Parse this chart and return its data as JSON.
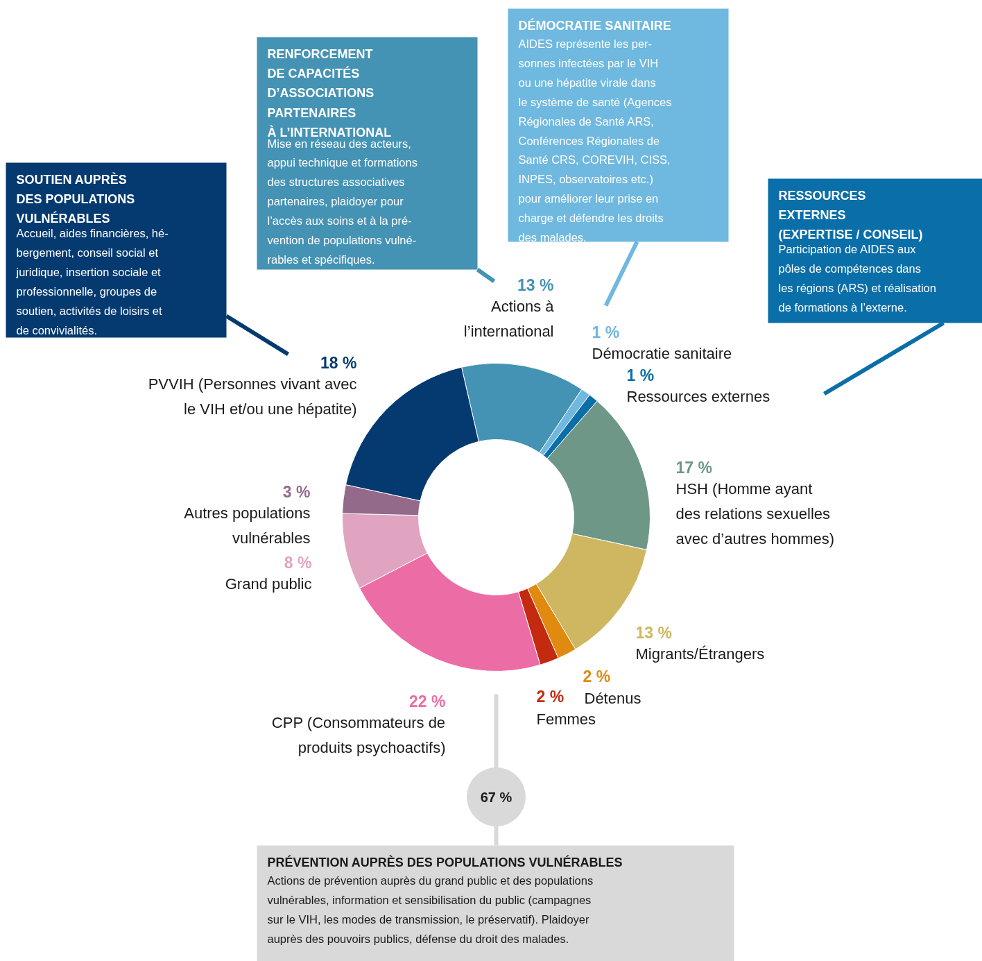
{
  "chart_data": {
    "type": "donut",
    "categories": [
      "Actions à\nl’international",
      "Démocratie sanitaire",
      "Ressources externes",
      "HSH (Homme ayant\ndes relations sexuelles\navec d’autres hommes)",
      "Migrants/Étrangers",
      "Détenus",
      "Femmes",
      "CPP (Consommateurs de\nproduits psychoactifs)",
      "Grand public",
      "Autres populations\nvulnérables",
      "PVVIH (Personnes vivant avec\nle VIH et/ou une hépatite)"
    ],
    "values": [
      13,
      1,
      1,
      17,
      13,
      2,
      2,
      22,
      8,
      3,
      18
    ],
    "value_labels": [
      "13 %",
      "1 %",
      "1 %",
      "17 %",
      "13 %",
      "2 %",
      "2 %",
      "22 %",
      "8 %",
      "3 %",
      "18 %"
    ],
    "colors": [
      "#4492b4",
      "#6fb8df",
      "#0a6ea8",
      "#6e9788",
      "#cfb660",
      "#e08a10",
      "#c42a10",
      "#ec6ca6",
      "#e0a4c0",
      "#946a8a",
      "#043a70"
    ],
    "annotations": [
      "SOUTIEN AUPRÈS\nDES POPULATIONS\nVULNÉRABLES",
      "Accueil, aides financières, hé-\nbergement, conseil social et\njuridique, insertion sociale et\nprofessionnelle, groupes de\nsoutien, activités de loisirs et\nde convivialités.",
      "RENFORCEMENT\nDE CAPACITÉS\nD’ASSOCIATIONS\nPARTENAIRES\nÀ L’INTERNATIONAL",
      "Mise en réseau des acteurs,\nappui technique et formations\ndes structures associatives\npartenaires, plaidoyer pour\nl’accès aux soins et à la pré-\nvention de populations vulné-\nrables et spécifiques.",
      "DÉMOCRATIE SANITAIRE",
      "AIDES représente les per-\nsonnes infectées par le VIH\nou une hépatite virale dans\nle système de santé (Agences\nRégionales de Santé ARS,\nConférences Régionales de\nSanté CRS, COREVIH, CISS,\nINPES, observatoires etc.)\npour améliorer leur prise en\ncharge et défendre les droits\ndes malades.",
      "RESSOURCES\nEXTERNES\n(EXPERTISE / CONSEIL)",
      "Participation de AIDES aux\npôles de compétences dans\nles régions (ARS) et réalisation\nde formations à l’externe.",
      "PRÉVENTION AUPRÈS DES POPULATIONS VULNÉRABLES",
      "Actions de prévention auprès du grand public et des populations\nvulnérables, information et sensibilisation du public (campagnes\nsur le VIH, les modes de transmission, le préservatif). Plaidoyer\nauprès des pouvoirs publics, défense du droit des malades.",
      "67 %"
    ]
  }
}
